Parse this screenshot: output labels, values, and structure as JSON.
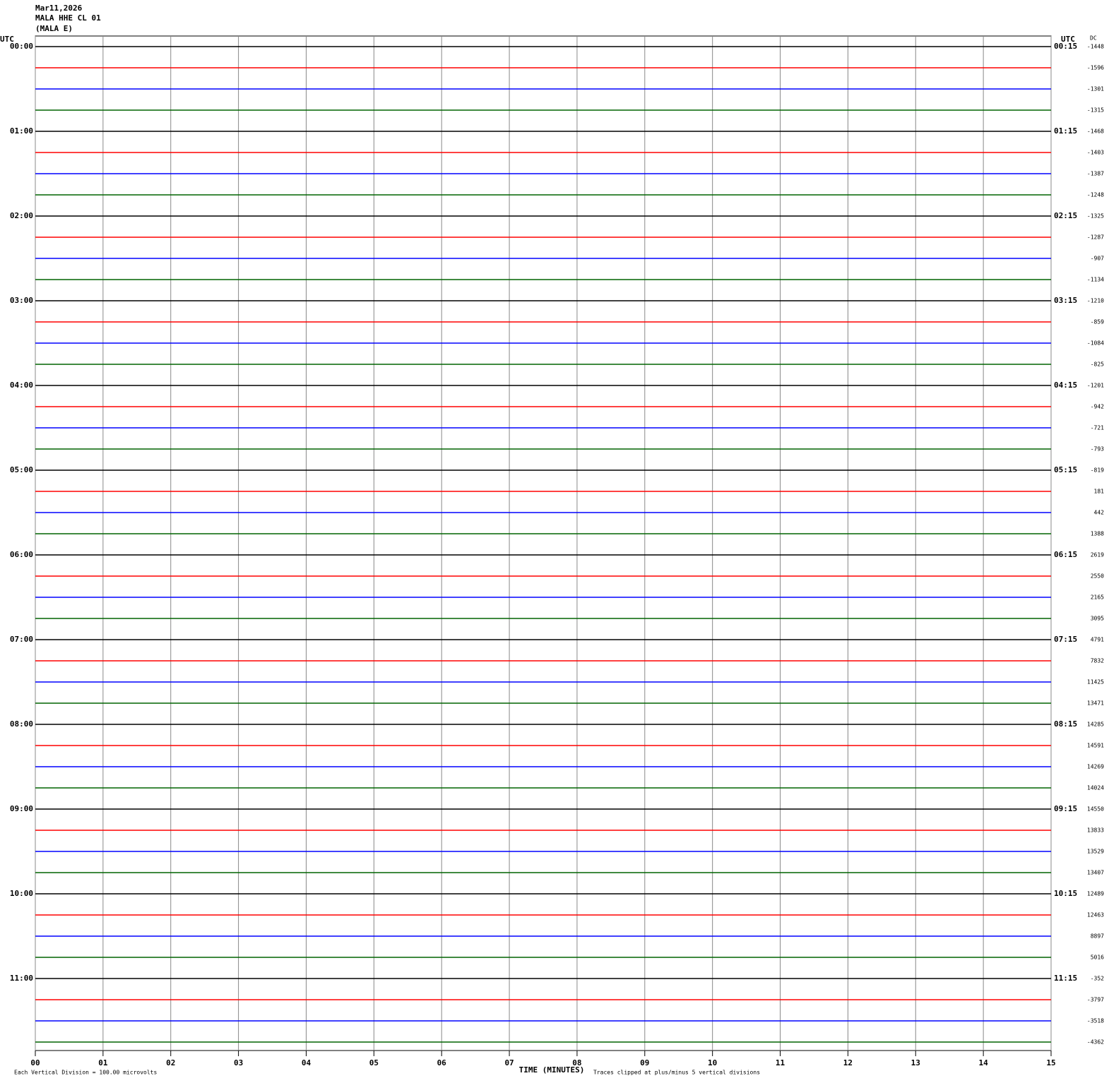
{
  "chart_data": {
    "type": "helicorder",
    "title": "Mar11,2026",
    "subtitle": "MALA HHE CL 01",
    "station": "(MALA E)",
    "left_axis_label": "UTC",
    "right_axis_label": "UTC",
    "dc_label": "DC",
    "xlabel": "TIME (MINUTES)",
    "scale_note": "Each Vertical Division =  100.00 microvolts",
    "clip_note": "Traces clipped at plus/minus 5 vertical divisions",
    "xlim": [
      0,
      15
    ],
    "xticks": [
      {
        "value": 0,
        "label": "00"
      },
      {
        "value": 1,
        "label": "01"
      },
      {
        "value": 2,
        "label": "02"
      },
      {
        "value": 3,
        "label": "03"
      },
      {
        "value": 4,
        "label": "04"
      },
      {
        "value": 5,
        "label": "05"
      },
      {
        "value": 6,
        "label": "06"
      },
      {
        "value": 7,
        "label": "07"
      },
      {
        "value": 8,
        "label": "08"
      },
      {
        "value": 9,
        "label": "09"
      },
      10,
      11,
      12,
      13,
      14,
      15
    ],
    "left_labels": [
      "00:00",
      "01:00",
      "02:00",
      "03:00",
      "04:00",
      "05:00",
      "06:00",
      "07:00",
      "08:00",
      "09:00",
      "10:00",
      "11:00"
    ],
    "right_labels": [
      "00:15",
      "01:15",
      "02:15",
      "03:15",
      "04:15",
      "05:15",
      "06:15",
      "07:15",
      "08:15",
      "09:15",
      "10:15",
      "11:15"
    ],
    "colors": [
      "#000000",
      "#ff0000",
      "#0000ff",
      "#006400"
    ],
    "dc": [
      -1448,
      -1596,
      -1301,
      -1315,
      -1468,
      -1403,
      -1387,
      -1248,
      -1325,
      -1287,
      -907,
      -1134,
      -1210,
      -859,
      -1084,
      -825,
      -1201,
      -942,
      -721,
      -793,
      -819,
      181,
      442,
      1388,
      2619,
      2550,
      2165,
      3095,
      4791,
      7832,
      11425,
      13471,
      14285,
      14591,
      14269,
      14024,
      14550,
      13833,
      13529,
      13407,
      12489,
      12463,
      8897,
      5016,
      -352,
      -3797,
      -3518,
      -4362
    ],
    "grid": true
  }
}
